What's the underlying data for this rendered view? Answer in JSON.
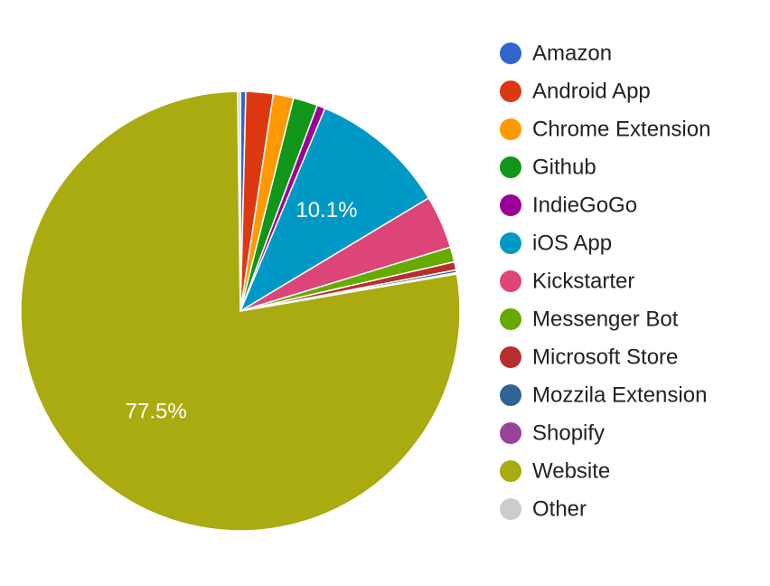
{
  "chart_data": {
    "type": "pie",
    "start_angle_deg": 0,
    "direction": "clockwise",
    "legend_position": "right",
    "slices": [
      {
        "label": "Amazon",
        "value": 0.4,
        "color": "#3366cc"
      },
      {
        "label": "Android App",
        "value": 2.0,
        "color": "#dc3912"
      },
      {
        "label": "Chrome Extension",
        "value": 1.5,
        "color": "#ff9900"
      },
      {
        "label": "Github",
        "value": 1.8,
        "color": "#109618"
      },
      {
        "label": "IndieGoGo",
        "value": 0.6,
        "color": "#990099"
      },
      {
        "label": "iOS App",
        "value": 10.1,
        "color": "#0099c6",
        "display_label": "10.1%"
      },
      {
        "label": "Kickstarter",
        "value": 3.9,
        "color": "#dd4477"
      },
      {
        "label": "Messenger Bot",
        "value": 1.1,
        "color": "#66aa00"
      },
      {
        "label": "Microsoft Store",
        "value": 0.6,
        "color": "#b82e2e"
      },
      {
        "label": "Mozzila Extension",
        "value": 0.2,
        "color": "#316395"
      },
      {
        "label": "Shopify",
        "value": 0.1,
        "color": "#994499"
      },
      {
        "label": "Website",
        "value": 77.5,
        "color": "#aaaa11",
        "display_label": "77.5%"
      },
      {
        "label": "Other",
        "value": 0.2,
        "color": "#cccccc"
      }
    ]
  }
}
